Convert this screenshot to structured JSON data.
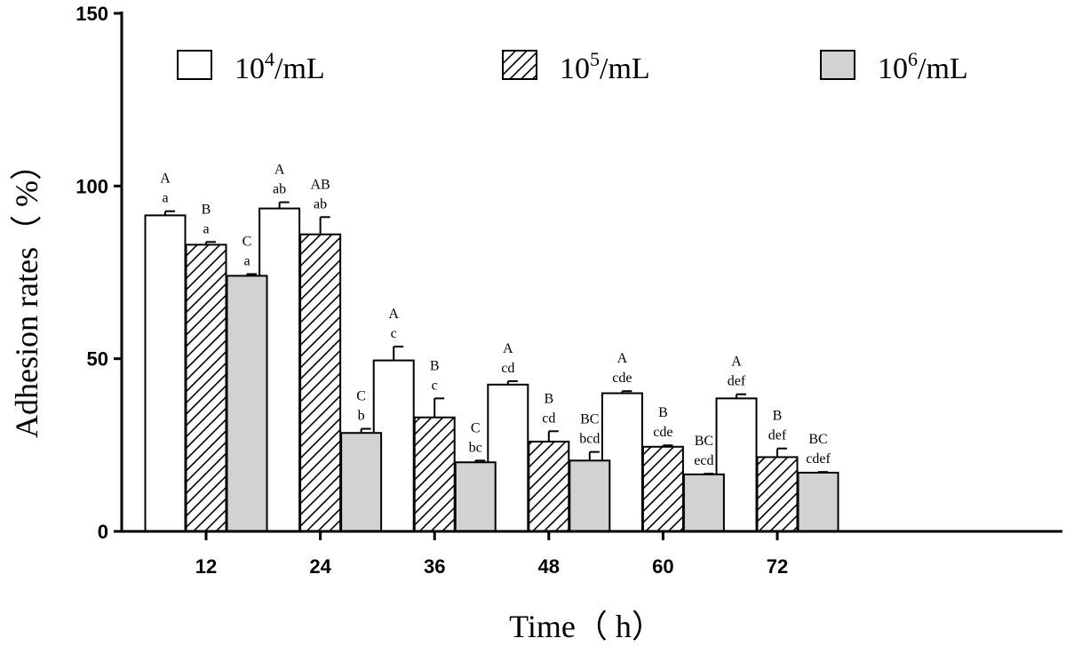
{
  "chart_data": {
    "type": "bar",
    "title": "",
    "xlabel": "Time（ h）",
    "ylabel": "Adhesion rates（ %）",
    "ylim": [
      0,
      150
    ],
    "yticks": [
      0,
      50,
      100,
      150
    ],
    "categories": [
      "12",
      "24",
      "36",
      "48",
      "60",
      "72"
    ],
    "legend": {
      "position": "top",
      "entries": [
        "10^4/mL",
        "10^5/mL",
        "10^6/mL"
      ]
    },
    "colors": {
      "bar_outline": "#000000",
      "series1_fill": "#ffffff",
      "series3_fill": "#d2d2d2"
    },
    "series": [
      {
        "name": "10^4/mL",
        "legend_base": "10",
        "legend_exp": "4",
        "legend_unit": "/mL",
        "fill": "white",
        "values": [
          91.5,
          93.5,
          49.5,
          42.5,
          40,
          38.5
        ],
        "errors": [
          1.2,
          1.8,
          4.0,
          1.0,
          0.6,
          1.2
        ],
        "labels_upper": [
          "A",
          "A",
          "A",
          "A",
          "A",
          "A"
        ],
        "labels_lower": [
          "a",
          "ab",
          "c",
          "cd",
          "cde",
          "def"
        ]
      },
      {
        "name": "10^5/mL",
        "legend_base": "10",
        "legend_exp": "5",
        "legend_unit": "/mL",
        "fill": "hatch",
        "values": [
          83,
          86,
          33,
          26,
          24.5,
          21.5
        ],
        "errors": [
          0.8,
          5.0,
          5.5,
          3.0,
          0.4,
          2.5
        ],
        "labels_upper": [
          "B",
          "AB",
          "B",
          "B",
          "B",
          "B"
        ],
        "labels_lower": [
          "a",
          "ab",
          "c",
          "cd",
          "cde",
          "def"
        ]
      },
      {
        "name": "10^6/mL",
        "legend_base": "10",
        "legend_exp": "6",
        "legend_unit": "/mL",
        "fill": "gray",
        "values": [
          74,
          28.5,
          20,
          20.5,
          16.5,
          17
        ],
        "errors": [
          0.5,
          1.2,
          0.5,
          2.5,
          0.2,
          0.2
        ],
        "labels_upper": [
          "C",
          "C",
          "C",
          "BC",
          "BC",
          "BC"
        ],
        "labels_lower": [
          "a",
          "b",
          "bc",
          "bcd",
          "ecd",
          "cdef"
        ]
      }
    ]
  }
}
